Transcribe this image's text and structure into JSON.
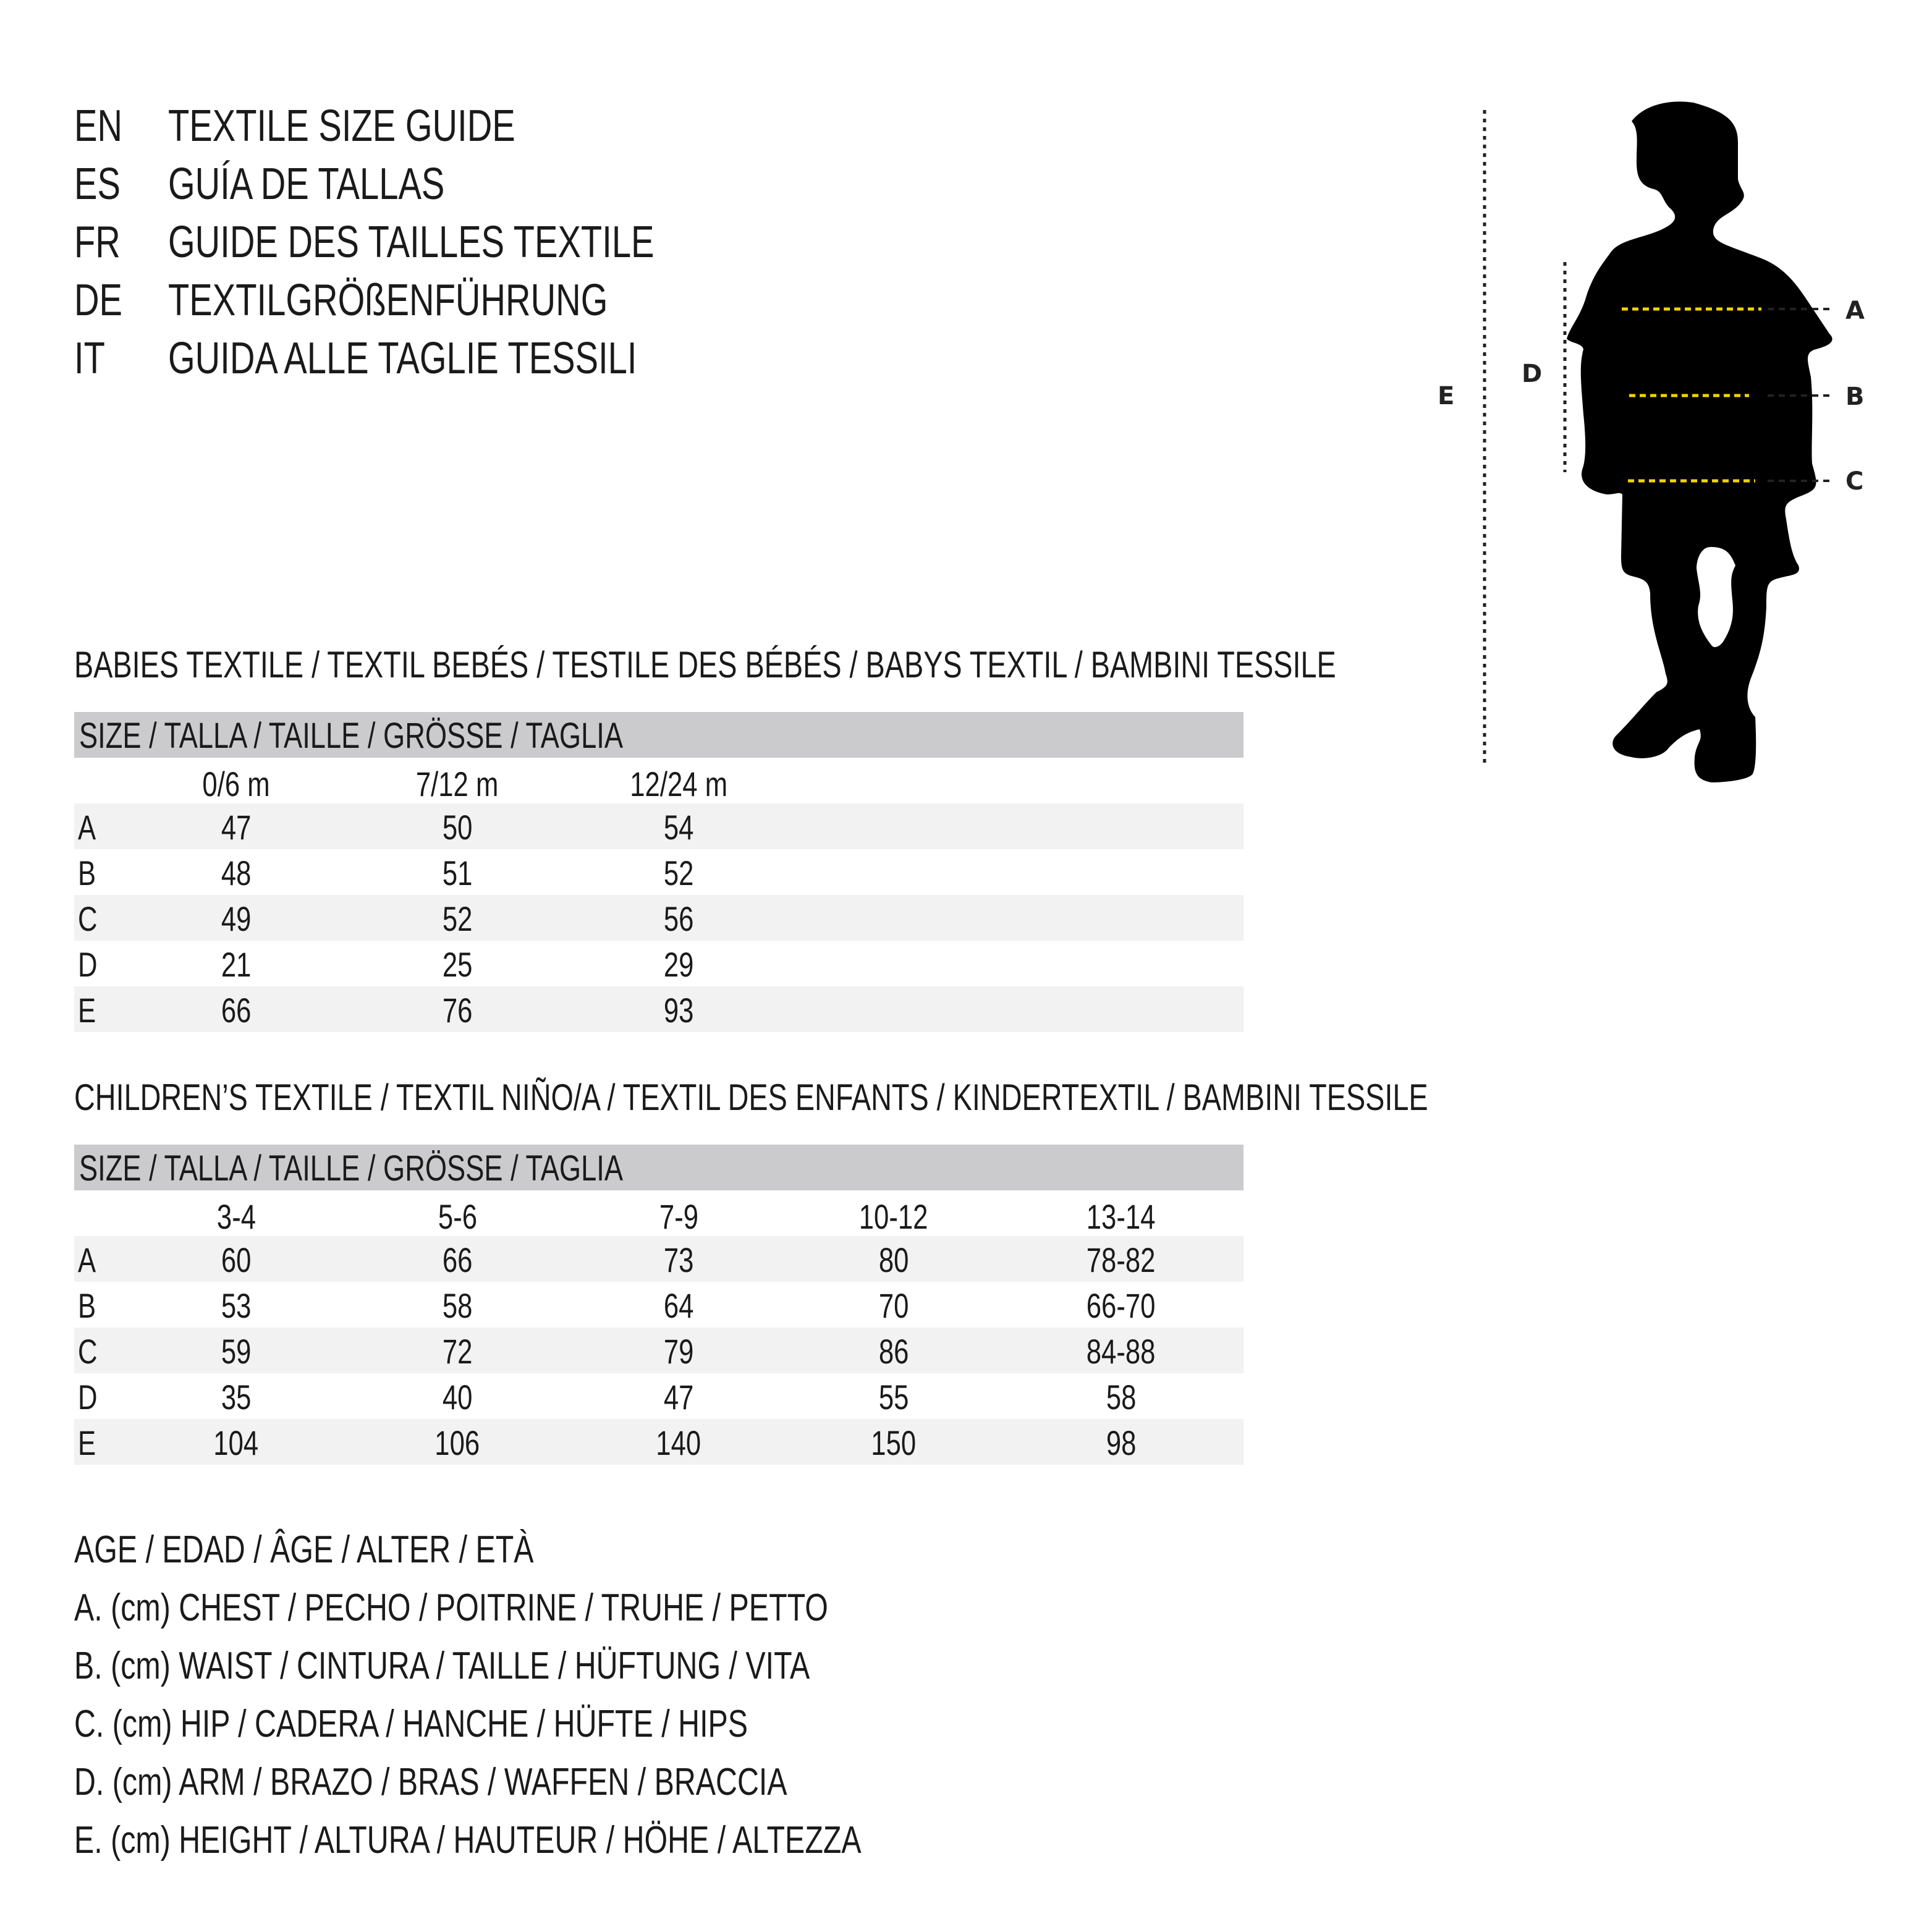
{
  "header": [
    {
      "code": "EN",
      "text": "TEXTILE SIZE GUIDE"
    },
    {
      "code": "ES",
      "text": "GUÍA DE TALLAS"
    },
    {
      "code": "FR",
      "text": "GUIDE DES TAILLES TEXTILE"
    },
    {
      "code": "DE",
      "text": "TEXTILGRÖßENFÜHRUNG"
    },
    {
      "code": "IT",
      "text": "GUIDA ALLE TAGLIE TESSILI"
    }
  ],
  "figure": {
    "labels": {
      "A": "A",
      "B": "B",
      "C": "C",
      "D": "D",
      "E": "E"
    },
    "measure_line_color": "#f2d300"
  },
  "babies": {
    "title": "BABIES TEXTILE / TEXTIL BEBÉS / TESTILE DES BÉBÉS / BABYS TEXTIL / BAMBINI TESSILE",
    "size_header": "SIZE / TALLA / TAILLE / GRÖSSE / TAGLIA",
    "columns": [
      "0/6 m",
      "7/12 m",
      "12/24 m"
    ],
    "rows": [
      {
        "label": "A",
        "values": [
          "47",
          "50",
          "54"
        ]
      },
      {
        "label": "B",
        "values": [
          "48",
          "51",
          "52"
        ]
      },
      {
        "label": "C",
        "values": [
          "49",
          "52",
          "56"
        ]
      },
      {
        "label": "D",
        "values": [
          "21",
          "25",
          "29"
        ]
      },
      {
        "label": "E",
        "values": [
          "66",
          "76",
          "93"
        ]
      }
    ]
  },
  "children": {
    "title": "CHILDREN’S TEXTILE / TEXTIL NIÑO/A / TEXTIL DES ENFANTS / KINDERTEXTIL / BAMBINI TESSILE",
    "size_header": "SIZE / TALLA / TAILLE / GRÖSSE / TAGLIA",
    "columns": [
      "3-4",
      "5-6",
      "7-9",
      "10-12",
      "13-14"
    ],
    "rows": [
      {
        "label": "A",
        "values": [
          "60",
          "66",
          "73",
          "80",
          "78-82"
        ]
      },
      {
        "label": "B",
        "values": [
          "53",
          "58",
          "64",
          "70",
          "66-70"
        ]
      },
      {
        "label": "C",
        "values": [
          "59",
          "72",
          "79",
          "86",
          "84-88"
        ]
      },
      {
        "label": "D",
        "values": [
          "35",
          "40",
          "47",
          "55",
          "58"
        ]
      },
      {
        "label": "E",
        "values": [
          "104",
          "106",
          "140",
          "150",
          "98"
        ]
      }
    ]
  },
  "legend": [
    "AGE / EDAD / ÂGE / ALTER / ETÀ",
    "A. (cm) CHEST / PECHO / POITRINE / TRUHE / PETTO",
    "B. (cm) WAIST / CINTURA / TAILLE / HÜFTUNG / VITA",
    "C. (cm) HIP / CADERA / HANCHE / HÜFTE / HIPS",
    "D. (cm) ARM / BRAZO / BRAS / WAFFEN / BRACCIA",
    "E. (cm) HEIGHT / ALTURA / HAUTEUR / HÖHE / ALTEZZA"
  ]
}
